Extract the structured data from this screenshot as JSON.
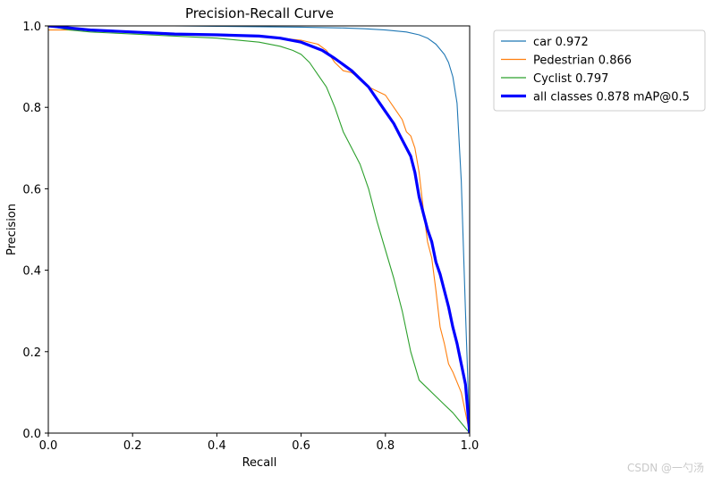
{
  "chart_data": {
    "type": "line",
    "title": "Precision-Recall Curve",
    "xlabel": "Recall",
    "ylabel": "Precision",
    "xlim": [
      0.0,
      1.0
    ],
    "ylim": [
      0.0,
      1.0
    ],
    "grid": false,
    "legend_placement": "outside-right-top",
    "xticks": [
      "0.0",
      "0.2",
      "0.4",
      "0.6",
      "0.8",
      "1.0"
    ],
    "yticks": [
      "0.0",
      "0.2",
      "0.4",
      "0.6",
      "0.8",
      "1.0"
    ],
    "series": [
      {
        "name": "car 0.972",
        "color": "#1f77b4",
        "x": [
          0.0,
          0.1,
          0.2,
          0.3,
          0.4,
          0.5,
          0.6,
          0.7,
          0.75,
          0.8,
          0.85,
          0.88,
          0.9,
          0.92,
          0.94,
          0.95,
          0.96,
          0.97,
          0.98,
          0.99,
          1.0
        ],
        "y": [
          1.0,
          1.0,
          1.0,
          1.0,
          0.999,
          0.998,
          0.997,
          0.995,
          0.993,
          0.99,
          0.985,
          0.978,
          0.97,
          0.955,
          0.93,
          0.91,
          0.875,
          0.81,
          0.62,
          0.3,
          0.0
        ]
      },
      {
        "name": "Pedestrian 0.866",
        "color": "#ff7f0e",
        "x": [
          0.0,
          0.1,
          0.2,
          0.3,
          0.4,
          0.5,
          0.55,
          0.6,
          0.64,
          0.66,
          0.68,
          0.7,
          0.72,
          0.74,
          0.76,
          0.78,
          0.8,
          0.82,
          0.84,
          0.85,
          0.86,
          0.87,
          0.88,
          0.89,
          0.9,
          0.91,
          0.92,
          0.93,
          0.94,
          0.95,
          0.96,
          0.98,
          1.0
        ],
        "y": [
          0.99,
          0.99,
          0.985,
          0.98,
          0.978,
          0.975,
          0.97,
          0.965,
          0.955,
          0.94,
          0.91,
          0.89,
          0.885,
          0.87,
          0.85,
          0.84,
          0.83,
          0.8,
          0.77,
          0.74,
          0.73,
          0.7,
          0.64,
          0.55,
          0.47,
          0.43,
          0.35,
          0.26,
          0.22,
          0.17,
          0.15,
          0.1,
          0.0
        ]
      },
      {
        "name": "Cyclist 0.797",
        "color": "#2ca02c",
        "x": [
          0.0,
          0.05,
          0.1,
          0.2,
          0.3,
          0.4,
          0.5,
          0.55,
          0.58,
          0.6,
          0.62,
          0.64,
          0.66,
          0.68,
          0.7,
          0.72,
          0.74,
          0.76,
          0.78,
          0.8,
          0.82,
          0.84,
          0.86,
          0.88,
          0.9,
          0.92,
          0.94,
          0.96,
          0.98,
          1.0
        ],
        "y": [
          1.0,
          0.99,
          0.985,
          0.98,
          0.975,
          0.97,
          0.96,
          0.95,
          0.94,
          0.93,
          0.91,
          0.88,
          0.85,
          0.8,
          0.74,
          0.7,
          0.66,
          0.6,
          0.52,
          0.45,
          0.38,
          0.3,
          0.2,
          0.13,
          0.11,
          0.09,
          0.07,
          0.05,
          0.025,
          0.0
        ]
      },
      {
        "name": "all classes 0.878 mAP@0.5",
        "color": "#0000ff",
        "x": [
          0.0,
          0.1,
          0.2,
          0.3,
          0.4,
          0.5,
          0.55,
          0.6,
          0.65,
          0.68,
          0.7,
          0.72,
          0.74,
          0.76,
          0.78,
          0.8,
          0.82,
          0.84,
          0.86,
          0.87,
          0.88,
          0.89,
          0.9,
          0.91,
          0.92,
          0.93,
          0.94,
          0.95,
          0.96,
          0.97,
          0.98,
          0.99,
          1.0
        ],
        "y": [
          1.0,
          0.99,
          0.985,
          0.98,
          0.978,
          0.975,
          0.97,
          0.96,
          0.94,
          0.92,
          0.905,
          0.89,
          0.87,
          0.85,
          0.82,
          0.79,
          0.76,
          0.72,
          0.68,
          0.64,
          0.58,
          0.54,
          0.5,
          0.47,
          0.42,
          0.39,
          0.35,
          0.31,
          0.26,
          0.22,
          0.17,
          0.12,
          0.0
        ]
      }
    ]
  },
  "watermark": "CSDN @一勺汤"
}
